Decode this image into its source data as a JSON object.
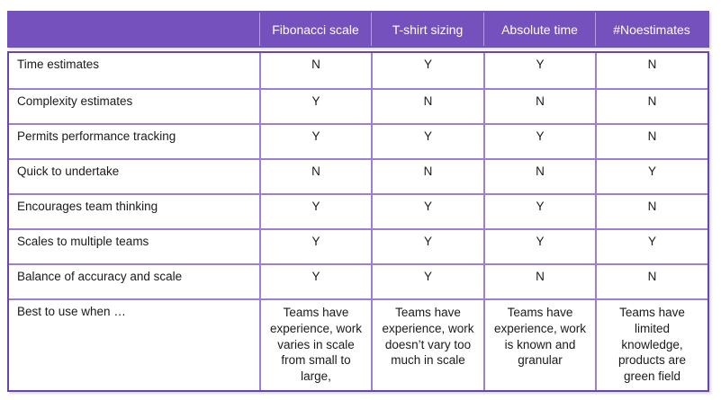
{
  "chart_data": {
    "type": "table",
    "columns": [
      "Fibonacci scale",
      "T-shirt sizing",
      "Absolute time",
      "#Noestimates"
    ],
    "rows": [
      {
        "label": "Time estimates",
        "values": [
          "N",
          "Y",
          "Y",
          "N"
        ]
      },
      {
        "label": "Complexity estimates",
        "values": [
          "Y",
          "N",
          "N",
          "N"
        ]
      },
      {
        "label": "Permits performance tracking",
        "values": [
          "Y",
          "Y",
          "Y",
          "N"
        ]
      },
      {
        "label": "Quick to undertake",
        "values": [
          "N",
          "N",
          "N",
          "Y"
        ]
      },
      {
        "label": "Encourages team thinking",
        "values": [
          "Y",
          "Y",
          "Y",
          "N"
        ]
      },
      {
        "label": "Scales to multiple teams",
        "values": [
          "Y",
          "Y",
          "Y",
          "Y"
        ]
      },
      {
        "label": "Balance of accuracy and scale",
        "values": [
          "Y",
          "Y",
          "N",
          "N"
        ]
      },
      {
        "label": "Best to use when …",
        "values": [
          "Teams have experience, work varies in scale from small to large,",
          "Teams have experience, work doesn’t vary too much in scale",
          "Teams have experience, work is known and granular",
          "Teams have limited knowledge, products are green field"
        ]
      }
    ]
  },
  "colors": {
    "header_bg": "#7551BE",
    "header_text": "#FFFFFF",
    "outer_border": "#6C43B0",
    "inner_border": "#9C7ED6",
    "cell_text": "#1A1A1A",
    "page_bg": "#FFFFFF"
  }
}
